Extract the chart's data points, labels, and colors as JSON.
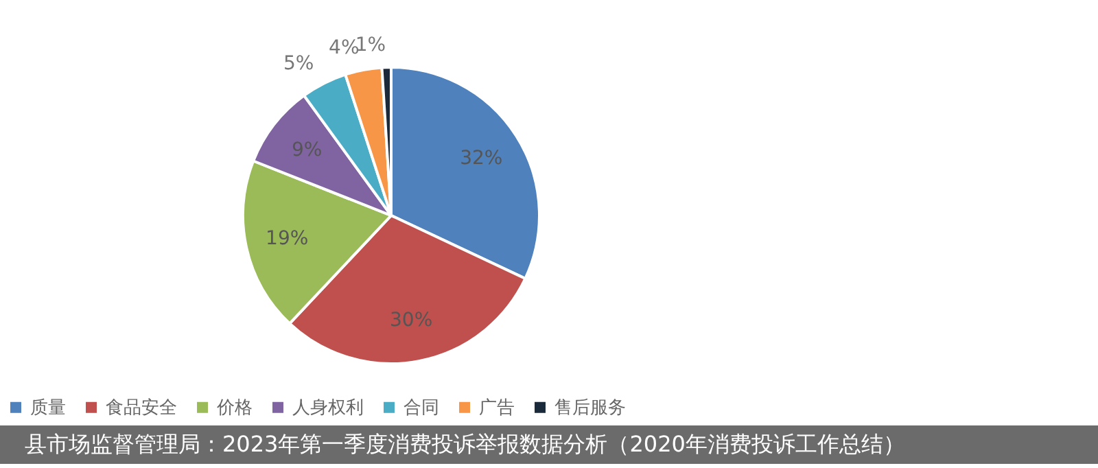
{
  "chart_data": {
    "type": "pie",
    "categories": [
      "质量",
      "食品安全",
      "价格",
      "人身权利",
      "合同",
      "广告",
      "售后服务"
    ],
    "values": [
      32,
      30,
      19,
      9,
      5,
      4,
      1
    ],
    "colors": [
      "#4f81bd",
      "#c0504d",
      "#9bbb59",
      "#8064a2",
      "#4bacc6",
      "#f79646",
      "#1b2a3a"
    ],
    "value_labels": [
      "32%",
      "30%",
      "19%",
      "9%",
      "5%",
      "4%",
      "1%"
    ],
    "legend": "bottom",
    "annotations": [
      "县市场监督管理局：2023年第一季度消费投诉举报数据分析（2020年消费投诉工作总结）"
    ]
  }
}
